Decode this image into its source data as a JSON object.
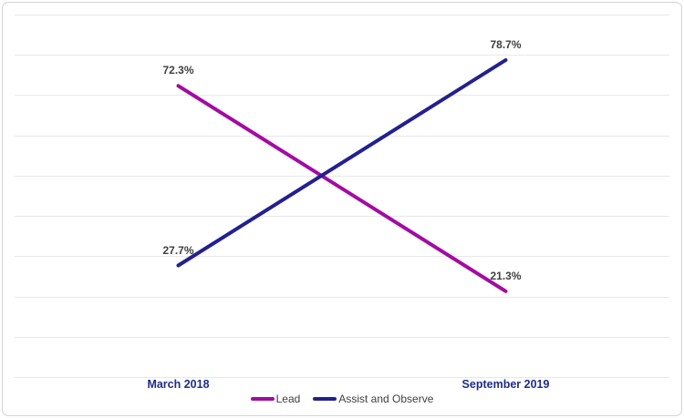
{
  "chart_data": {
    "type": "line",
    "categories": [
      "March 2018",
      "September 2019"
    ],
    "series": [
      {
        "name": "Lead",
        "color": "#a30ba3",
        "values": [
          72.3,
          21.3
        ],
        "labels": [
          "72.3%",
          "21.3%"
        ]
      },
      {
        "name": "Assist and Observe",
        "color": "#23208f",
        "values": [
          27.7,
          78.7
        ],
        "labels": [
          "27.7%",
          "78.7%"
        ]
      }
    ],
    "title": "",
    "xlabel": "",
    "ylabel": "",
    "ylim": [
      0,
      90
    ],
    "gridline_step": 10,
    "grid": true,
    "legend_position": "bottom",
    "data_label_position": "above"
  },
  "styles": {
    "background": "#ffffff",
    "frame_border_color": "#d4d4d4",
    "gridline_color": "#e8e8e8",
    "data_label_color": "#3f3f3f",
    "category_label_color": "#1f2c87",
    "legend_text_color": "#404040"
  }
}
